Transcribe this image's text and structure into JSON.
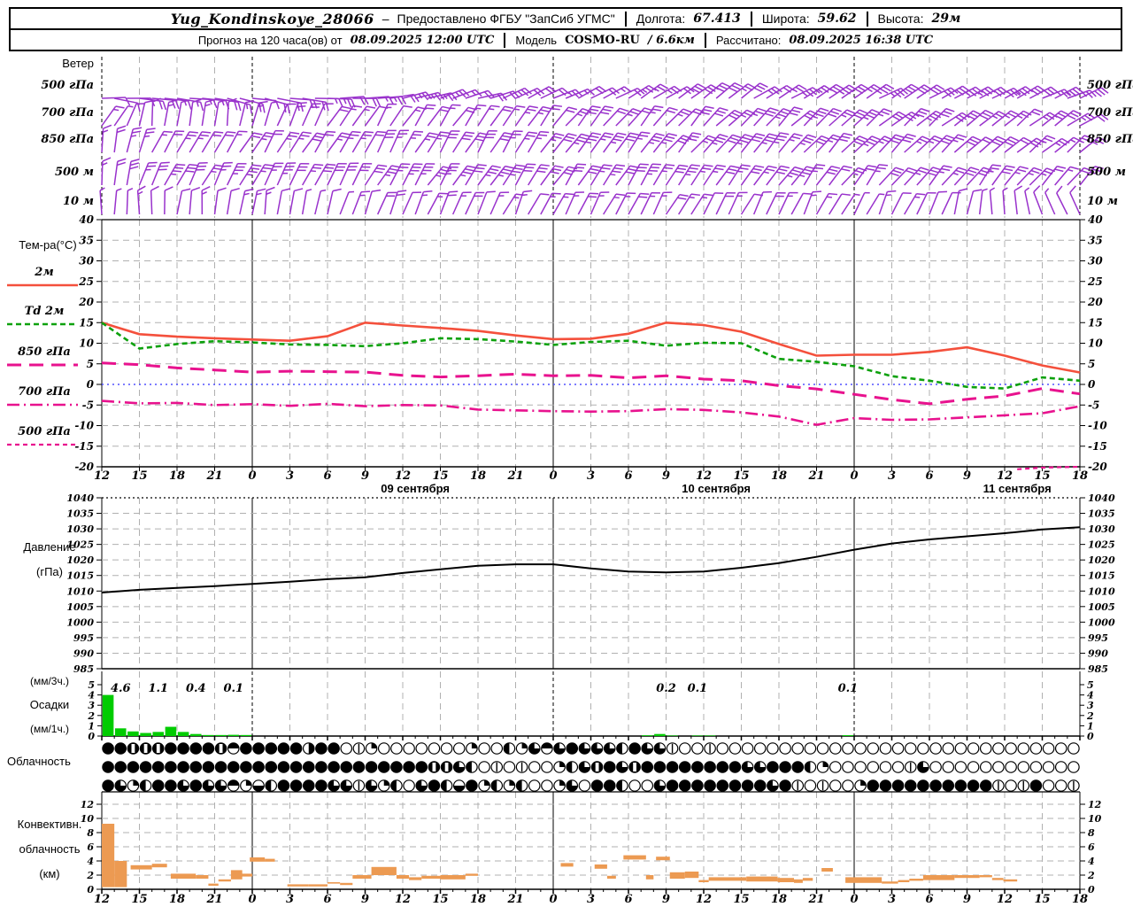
{
  "header": {
    "station": "Yug_Kondinskoye_28066",
    "dash": "–",
    "provider": "Предоставлено ФГБУ \"ЗапСиб УГМС\"",
    "lon_label": "Долгота:",
    "lon": "67.413",
    "lat_label": "Широта:",
    "lat": "59.62",
    "alt_label": "Высота:",
    "alt": "29м",
    "forecast_label": "Прогноз на 120 часа(ов) от",
    "run_time": "08.09.2025 12:00 UTC",
    "model_label": "Модель",
    "model_name": "COSMO-RU",
    "model_res": "/ 6.6км",
    "calc_label": "Рассчитано:",
    "calc_time": "08.09.2025 16:38 UTC"
  },
  "panels": {
    "wind": {
      "title": "Ветер",
      "levels": [
        {
          "label": "500 гПа"
        },
        {
          "label": "700 гПа"
        },
        {
          "label": "850 гПа"
        },
        {
          "label": "500 м"
        },
        {
          "label": "10 м"
        }
      ]
    },
    "temp": {
      "title": "Тем-ра(°C)",
      "legend": [
        {
          "label": "2м"
        },
        {
          "label": "Td  2м"
        },
        {
          "label": "850 гПа"
        },
        {
          "label": "700 гПа"
        },
        {
          "label": "500 гПа"
        }
      ]
    },
    "pressure": {
      "title1": "Давление",
      "title2": "(гПа)"
    },
    "precip": {
      "l1": "(мм/3ч.)",
      "l2": "Осадки",
      "l3": "(мм/1ч.)"
    },
    "cloud": {
      "title": "Облачность"
    },
    "conv": {
      "l1": "Конвективн.",
      "l2": "облачность",
      "l3": "(км)"
    }
  },
  "colors": {
    "barb": "#9932cc",
    "t2m": "#f4503c",
    "td": "#0da10d",
    "iso": "#e8128e",
    "zero_line": "#5050ff",
    "pressure": "#000000",
    "precip": "#00cc00",
    "convective": "#ec9a52",
    "grid": "#b0b0b0",
    "axis": "#000000"
  },
  "chart_data": {
    "type": "meteogram",
    "hours_total": 78,
    "hour_step": 3,
    "hour_tick_labels": [
      "12",
      "15",
      "18",
      "21",
      "0",
      "3",
      "6",
      "9",
      "12",
      "15",
      "18",
      "21",
      "0",
      "3",
      "6",
      "9",
      "12",
      "15",
      "18",
      "21",
      "0",
      "3",
      "6",
      "9",
      "12",
      "15",
      "18"
    ],
    "midnight_hours": [
      12,
      36,
      60
    ],
    "dates": [
      {
        "label": "09 сентября",
        "h": 25
      },
      {
        "label": "10 сентября",
        "h": 49
      },
      {
        "label": "11 сентября",
        "h": 73
      }
    ],
    "wind": {
      "rows": [
        {
          "label": "500 гПа",
          "y": 97,
          "bp": [
            [
              0,
              95,
              1.5
            ],
            [
              12,
              100,
              1.5
            ],
            [
              24,
              80,
              2
            ],
            [
              36,
              62,
              2
            ],
            [
              48,
              55,
              2.5
            ],
            [
              60,
              60,
              3
            ],
            [
              78,
              68,
              3
            ]
          ]
        },
        {
          "label": "700 гПа",
          "y": 128,
          "bp": [
            [
              0,
              40,
              1
            ],
            [
              4,
              5,
              1
            ],
            [
              10,
              10,
              1
            ],
            [
              18,
              30,
              1.5
            ],
            [
              30,
              35,
              2
            ],
            [
              42,
              40,
              2.5
            ],
            [
              54,
              45,
              3
            ],
            [
              66,
              50,
              3
            ],
            [
              78,
              55,
              2.5
            ]
          ]
        },
        {
          "label": "850 гПа",
          "y": 158,
          "bp": [
            [
              0,
              10,
              2
            ],
            [
              6,
              30,
              2
            ],
            [
              24,
              30,
              2.5
            ],
            [
              42,
              38,
              3
            ],
            [
              60,
              42,
              3
            ],
            [
              72,
              48,
              2.5
            ],
            [
              78,
              50,
              2
            ]
          ]
        },
        {
          "label": "500 м",
          "y": 195,
          "bp": [
            [
              0,
              5,
              2
            ],
            [
              6,
              28,
              3
            ],
            [
              24,
              32,
              3
            ],
            [
              48,
              35,
              3
            ],
            [
              66,
              38,
              2.5
            ],
            [
              78,
              40,
              2
            ]
          ]
        },
        {
          "label": "10 м",
          "y": 228,
          "bp": [
            [
              0,
              0,
              1
            ],
            [
              12,
              10,
              1
            ],
            [
              30,
              25,
              1.5
            ],
            [
              48,
              30,
              1.5
            ],
            [
              66,
              25,
              1
            ],
            [
              74,
              -15,
              0.5
            ],
            [
              78,
              -25,
              0.5
            ]
          ]
        }
      ]
    },
    "temperature": {
      "ylim": [
        -20,
        40
      ],
      "yticks": [
        40,
        35,
        30,
        25,
        20,
        15,
        10,
        5,
        0,
        -5,
        -10,
        -15,
        -20
      ],
      "series": [
        {
          "name": "2м",
          "values": [
            15.0,
            12.2,
            11.6,
            11.2,
            10.9,
            10.6,
            11.7,
            15.0,
            14.3,
            13.7,
            13.0,
            11.9,
            11.0,
            11.1,
            12.3,
            15.0,
            14.4,
            12.8,
            9.8,
            7.0,
            7.2,
            7.2,
            7.9,
            9.0,
            7.0,
            4.6,
            2.9
          ]
        },
        {
          "name": "Td 2м",
          "values": [
            15.0,
            8.7,
            9.8,
            10.5,
            10.2,
            9.7,
            9.6,
            9.3,
            10.0,
            11.2,
            11.0,
            10.4,
            9.6,
            10.3,
            10.6,
            9.4,
            10.1,
            10.0,
            6.2,
            5.5,
            4.4,
            2.0,
            0.9,
            -0.6,
            -1.0,
            1.7,
            0.9
          ]
        },
        {
          "name": "850 гПа",
          "values": [
            5.2,
            4.8,
            4.0,
            3.5,
            3.0,
            3.2,
            3.1,
            3.0,
            2.2,
            1.8,
            2.1,
            2.5,
            2.1,
            2.2,
            1.6,
            2.1,
            1.3,
            0.9,
            -0.3,
            -1.1,
            -2.4,
            -3.7,
            -4.7,
            -3.6,
            -2.8,
            -1.0,
            -2.3
          ]
        },
        {
          "name": "700 гПа",
          "values": [
            -4.0,
            -4.6,
            -4.5,
            -5.0,
            -4.8,
            -5.2,
            -4.7,
            -5.3,
            -5.0,
            -5.1,
            -6.1,
            -6.3,
            -6.5,
            -6.6,
            -6.5,
            -6.0,
            -6.2,
            -6.8,
            -7.8,
            -9.8,
            -8.2,
            -8.6,
            -8.5,
            -8.0,
            -7.5,
            -7.0,
            -5.3
          ]
        }
      ],
      "t500_segment": {
        "h": [
          73,
          75,
          78
        ],
        "v": [
          -20.6,
          -20.2,
          -20.0
        ]
      }
    },
    "pressure": {
      "ylim": [
        985,
        1040
      ],
      "yticks": [
        1040,
        1035,
        1030,
        1025,
        1020,
        1015,
        1010,
        1005,
        1000,
        995,
        990,
        985
      ],
      "values": [
        1009.5,
        1010.4,
        1011.0,
        1011.6,
        1012.3,
        1013.0,
        1013.8,
        1014.4,
        1015.8,
        1017.0,
        1018.1,
        1018.6,
        1018.6,
        1017.3,
        1016.3,
        1016.0,
        1016.3,
        1017.5,
        1019.0,
        1021.0,
        1023.3,
        1025.3,
        1026.6,
        1027.6,
        1028.6,
        1029.8,
        1030.5
      ]
    },
    "precip": {
      "ylim": [
        0,
        5
      ],
      "yticks": [
        5,
        4,
        3,
        2,
        1,
        0
      ],
      "bars": [
        {
          "h": 0,
          "v": 4.0
        },
        {
          "h": 1,
          "v": 0.75
        },
        {
          "h": 2,
          "v": 0.45
        },
        {
          "h": 3,
          "v": 0.3
        },
        {
          "h": 4,
          "v": 0.4
        },
        {
          "h": 5,
          "v": 0.9
        },
        {
          "h": 6,
          "v": 0.4
        },
        {
          "h": 7,
          "v": 0.2
        },
        {
          "h": 8,
          "v": 0.1
        },
        {
          "h": 9,
          "v": 0.1
        },
        {
          "h": 10,
          "v": 0.12
        },
        {
          "h": 11,
          "v": 0.1
        },
        {
          "h": 43,
          "v": 0.07
        },
        {
          "h": 44,
          "v": 0.2
        },
        {
          "h": 45,
          "v": 0.05
        },
        {
          "h": 47,
          "v": 0.05
        },
        {
          "h": 48,
          "v": 0.05
        },
        {
          "h": 59,
          "v": 0.08
        }
      ],
      "labels_3h": [
        {
          "h": 1.5,
          "text": "4.6"
        },
        {
          "h": 4.5,
          "text": "1.1"
        },
        {
          "h": 7.5,
          "text": "0.4"
        },
        {
          "h": 10.5,
          "text": "0.1"
        },
        {
          "h": 45,
          "text": "0.2"
        },
        {
          "h": 47.5,
          "text": "0.1"
        },
        {
          "h": 59.5,
          "text": "0.1"
        }
      ]
    },
    "cloud": {
      "legend": "8=full 0=clear V=overcast/white-stripe D=clear/diameter L/R/T/B=half 3=three-quarter 1=quarter",
      "rows": [
        "88VVV8888VT88888R880D10000000100L13T38333L833D00D00000000000000000000000000000",
        "88888888888888888888888888VV3L0D0D001L3V83V8888888833888L1000000D3000000000000",
        "831L883833T1BL888833D31L038LB81L1L0013088L0038888888838D0D0018888888888D0D800D"
      ]
    },
    "convective": {
      "ylim": [
        0,
        12
      ],
      "yticks": [
        12,
        10,
        8,
        6,
        4,
        2,
        0
      ],
      "bars": [
        [
          0,
          1,
          0.3,
          9.25
        ],
        [
          1,
          2,
          0.3,
          4.0
        ],
        [
          2.3,
          4,
          2.8,
          3.4
        ],
        [
          4,
          5.2,
          3.1,
          3.6
        ],
        [
          5.5,
          7.5,
          1.5,
          2.2
        ],
        [
          7.5,
          8.5,
          1.5,
          2.0
        ],
        [
          8.5,
          9.3,
          0.5,
          0.8
        ],
        [
          9.3,
          10.3,
          1.1,
          1.4
        ],
        [
          10.3,
          11.2,
          1.4,
          2.7
        ],
        [
          11,
          12,
          1.8,
          2.2
        ],
        [
          11.8,
          13,
          3.9,
          4.5
        ],
        [
          13,
          13.8,
          3.9,
          4.3
        ],
        [
          14.8,
          16.5,
          0.4,
          0.7
        ],
        [
          16.5,
          18,
          0.4,
          0.7
        ],
        [
          18,
          19,
          0.8,
          1.0
        ],
        [
          19,
          20,
          0.6,
          0.9
        ],
        [
          20,
          21.5,
          1.5,
          2.0
        ],
        [
          21.5,
          23.5,
          2.0,
          3.15
        ],
        [
          23.5,
          24.5,
          1.5,
          2.0
        ],
        [
          24.5,
          25.5,
          1.3,
          1.7
        ],
        [
          25.5,
          27,
          1.5,
          1.9
        ],
        [
          27,
          29,
          1.4,
          2.0
        ],
        [
          29,
          30,
          1.9,
          2.2
        ],
        [
          36.6,
          37.6,
          3.2,
          3.7
        ],
        [
          39.3,
          40.3,
          2.9,
          3.5
        ],
        [
          40.3,
          41,
          1.5,
          1.9
        ],
        [
          41.6,
          43.4,
          4.2,
          4.8
        ],
        [
          43.4,
          44,
          1.4,
          2.0
        ],
        [
          44.2,
          45.3,
          4.1,
          4.6
        ],
        [
          45.3,
          46.5,
          1.5,
          2.4
        ],
        [
          46.5,
          47.6,
          1.6,
          2.5
        ],
        [
          47.6,
          48.4,
          1.0,
          1.3
        ],
        [
          48.4,
          51.4,
          1.2,
          1.7
        ],
        [
          51.4,
          53.9,
          1.1,
          1.8
        ],
        [
          53.9,
          55.2,
          1.0,
          1.6
        ],
        [
          55.2,
          55.9,
          0.9,
          1.4
        ],
        [
          55.9,
          56.7,
          1.2,
          1.6
        ],
        [
          57.4,
          58.3,
          2.5,
          3.0
        ],
        [
          59.3,
          62.2,
          0.9,
          1.7
        ],
        [
          62.2,
          63.5,
          0.8,
          1.1
        ],
        [
          63.5,
          64.4,
          1.0,
          1.3
        ],
        [
          64.4,
          65.5,
          1.2,
          1.5
        ],
        [
          65.5,
          68,
          1.3,
          2.0
        ],
        [
          68,
          70,
          1.6,
          2.0
        ],
        [
          70,
          71,
          1.7,
          2.0
        ],
        [
          71,
          71.9,
          1.3,
          1.6
        ],
        [
          71.9,
          73,
          1.1,
          1.4
        ]
      ]
    }
  }
}
